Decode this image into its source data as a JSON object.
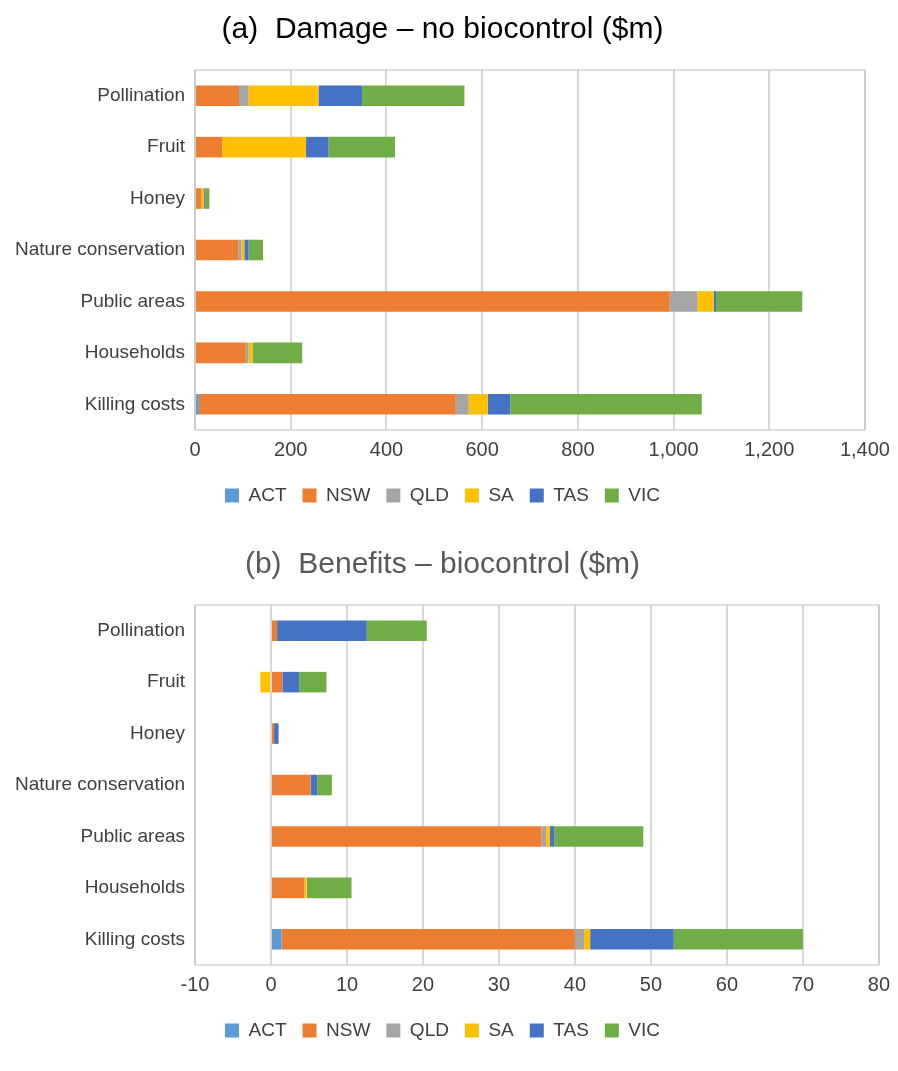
{
  "chart_data": [
    {
      "type": "bar",
      "orientation": "horizontal",
      "stacked": true,
      "title": "(a)  Damage – no biocontrol ($m)",
      "categories": [
        "Pollination",
        "Fruit",
        "Honey",
        "Nature conservation",
        "Public areas",
        "Households",
        "Killing costs"
      ],
      "series": [
        {
          "name": "ACT",
          "color": "#5b9bd5",
          "values": [
            0,
            0,
            0,
            0,
            0,
            0,
            8
          ]
        },
        {
          "name": "NSW",
          "color": "#ed7d31",
          "values": [
            92,
            57,
            13,
            91,
            992,
            106,
            537
          ]
        },
        {
          "name": "QLD",
          "color": "#a5a5a5",
          "values": [
            20,
            null,
            null,
            6,
            58,
            6,
            27
          ]
        },
        {
          "name": "SA",
          "color": "#ffc000",
          "values": [
            146,
            175,
            6,
            6,
            34,
            8,
            40
          ]
        },
        {
          "name": "TAS",
          "color": "#4472c4",
          "values": [
            91,
            47,
            3,
            9,
            5,
            0,
            47
          ]
        },
        {
          "name": "VIC",
          "color": "#70ad47",
          "values": [
            214,
            139,
            8,
            30,
            180,
            104,
            400
          ]
        }
      ],
      "xlim": [
        0,
        1400
      ],
      "xticks": [
        0,
        200,
        400,
        600,
        800,
        {
          "value": 1000,
          "label": "1,000"
        },
        {
          "value": 1200,
          "label": "1,200"
        },
        {
          "value": 1400,
          "label": "1,400"
        }
      ],
      "grid": "x",
      "legend": "bottom"
    },
    {
      "type": "bar",
      "orientation": "horizontal",
      "stacked": true,
      "title": "(b)  Benefits – biocontrol ($m)",
      "categories": [
        "Pollination",
        "Fruit",
        "Honey",
        "Nature conservation",
        "Public areas",
        "Households",
        "Killing costs"
      ],
      "series": [
        {
          "name": "ACT",
          "color": "#5b9bd5",
          "values": [
            0,
            0,
            0,
            0,
            0,
            0,
            1.4
          ]
        },
        {
          "name": "NSW",
          "color": "#ed7d31",
          "values": [
            0.8,
            1.5,
            0.4,
            5.2,
            35.6,
            4.4,
            38.6
          ]
        },
        {
          "name": "QLD",
          "color": "#a5a5a5",
          "values": [
            0,
            0,
            0,
            null,
            0.6,
            0,
            1.2
          ]
        },
        {
          "name": "SA",
          "color": "#ffc000",
          "values": [
            0,
            -1.4,
            0,
            0,
            0.5,
            0.3,
            0.8
          ]
        },
        {
          "name": "TAS",
          "color": "#4472c4",
          "values": [
            11.8,
            2.2,
            0.6,
            0.9,
            0.6,
            0,
            11.0
          ]
        },
        {
          "name": "VIC",
          "color": "#70ad47",
          "values": [
            7.9,
            3.6,
            null,
            1.9,
            11.7,
            5.9,
            17.0
          ]
        }
      ],
      "xlim": [
        -10,
        80
      ],
      "xticks": [
        -10,
        0,
        10,
        20,
        30,
        40,
        50,
        60,
        70,
        80
      ],
      "grid": "x",
      "legend": "bottom"
    }
  ]
}
